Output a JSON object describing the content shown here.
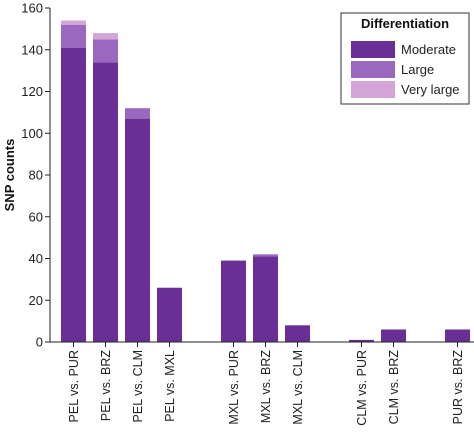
{
  "chart_data": {
    "type": "bar",
    "stacked": true,
    "ylabel": "SNP counts",
    "ylim": [
      0,
      160
    ],
    "yticks": [
      0,
      20,
      40,
      60,
      80,
      100,
      120,
      140,
      160
    ],
    "grid": false,
    "legend": {
      "title": "Differentiation",
      "placement": "top-right"
    },
    "groups": [
      [
        "PEL vs. PUR",
        "PEL vs. BRZ",
        "PEL vs. CLM",
        "PEL vs. MXL"
      ],
      [
        "MXL vs. PUR",
        "MXL vs. BRZ",
        "MXL vs. CLM"
      ],
      [
        "CLM vs. PUR",
        "CLM vs. BRZ"
      ],
      [
        "PUR vs. BRZ"
      ]
    ],
    "categories": [
      "PEL vs. PUR",
      "PEL vs. BRZ",
      "PEL vs. CLM",
      "PEL vs. MXL",
      "MXL vs. PUR",
      "MXL vs. BRZ",
      "MXL vs. CLM",
      "CLM vs. PUR",
      "CLM vs. BRZ",
      "PUR vs. BRZ"
    ],
    "series": [
      {
        "name": "Moderate",
        "color": "#6a2f96",
        "values": [
          141,
          134,
          107,
          26,
          39,
          41,
          8,
          1,
          6,
          6
        ]
      },
      {
        "name": "Large",
        "color": "#9a68bf",
        "values": [
          11,
          11,
          5,
          0,
          0,
          1,
          0,
          0,
          0,
          0
        ]
      },
      {
        "name": "Very large",
        "color": "#d4a6d8",
        "values": [
          2,
          3,
          0,
          0,
          0,
          0,
          0,
          0,
          0,
          0
        ]
      }
    ]
  }
}
